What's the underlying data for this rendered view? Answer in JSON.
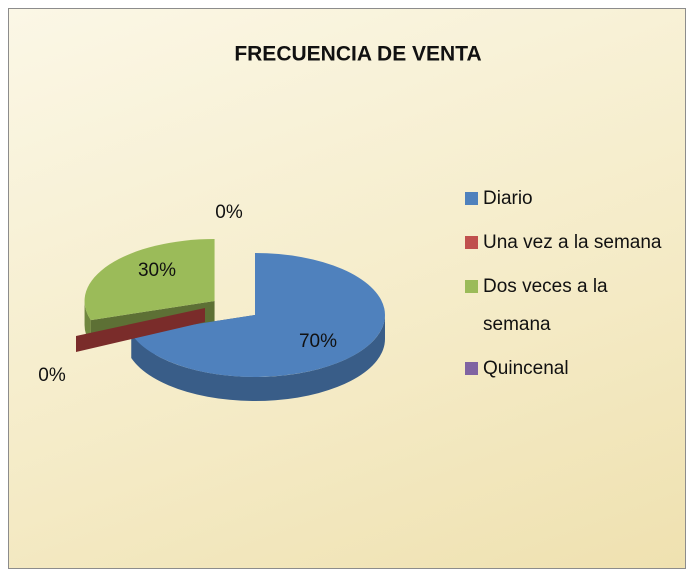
{
  "chart_data": {
    "type": "pie3d",
    "title": "FRECUENCIA DE VENTA",
    "categories": [
      "Diario",
      "Una vez a la semana",
      "Dos veces a la semana",
      "Quincenal"
    ],
    "values": [
      70,
      0,
      30,
      0
    ],
    "value_labels": [
      "70%",
      "0%",
      "30%",
      "0%"
    ],
    "colors": [
      "#4f81bd",
      "#c0504d",
      "#9bbb59",
      "#8064a2"
    ],
    "legend": "right"
  }
}
